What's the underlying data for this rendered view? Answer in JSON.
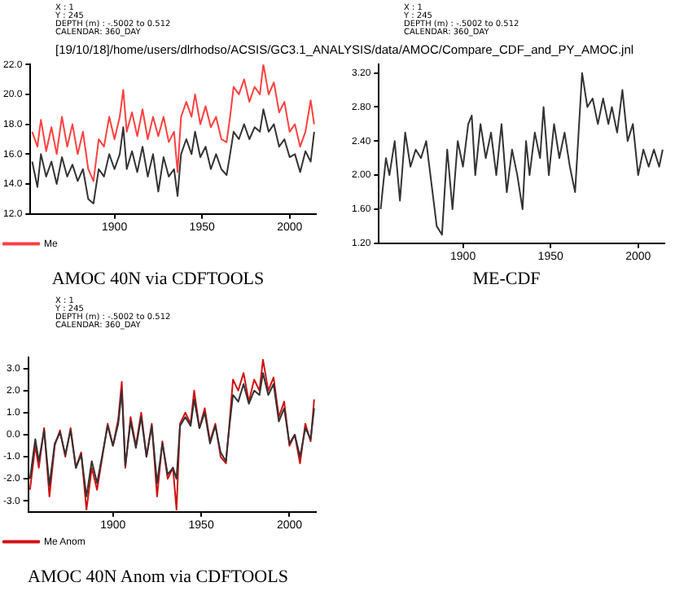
{
  "chart_data": [
    {
      "type": "line",
      "title": "AMOC 40N via CDFTOOLS",
      "subtitle": "[19/10/18]/home/users/dlrhodso/ACSIS/GC3.1_ANALYSIS/data/AMOC/Compare_CDF_and_PY_AMOC.jnl",
      "annotations": [
        "X : 1",
        "Y : 245",
        "DEPTH (m) : -.5002 to 0.512",
        "CALENDAR: 360_DAY"
      ],
      "x": [
        1853,
        1856,
        1858,
        1861,
        1864,
        1867,
        1870,
        1873,
        1876,
        1879,
        1882,
        1885,
        1888,
        1891,
        1894,
        1897,
        1900,
        1903,
        1905,
        1907,
        1910,
        1913,
        1916,
        1919,
        1922,
        1925,
        1928,
        1931,
        1934,
        1936,
        1938,
        1941,
        1944,
        1946,
        1949,
        1952,
        1955,
        1958,
        1961,
        1964,
        1966,
        1968,
        1971,
        1974,
        1977,
        1980,
        1983,
        1985,
        1988,
        1991,
        1994,
        1997,
        2000,
        2003,
        2006,
        2009,
        2012,
        2014
      ],
      "series": [
        {
          "color": "#333333",
          "values": [
            15.5,
            13.8,
            16.0,
            14.5,
            15.5,
            14.0,
            15.8,
            14.5,
            15.3,
            14.2,
            15.0,
            13.0,
            12.7,
            15.0,
            14.5,
            16.0,
            15.0,
            16.0,
            17.8,
            15.0,
            16.2,
            14.8,
            16.5,
            14.5,
            16.0,
            13.5,
            15.8,
            14.5,
            15.0,
            13.2,
            16.0,
            17.0,
            16.0,
            17.5,
            15.8,
            16.5,
            15.0,
            16.0,
            15.0,
            14.6,
            16.0,
            17.5,
            17.0,
            18.0,
            17.0,
            17.8,
            17.5,
            19.0,
            17.5,
            18.0,
            16.5,
            17.0,
            15.8,
            16.0,
            14.8,
            16.2,
            15.5,
            17.5
          ]
        },
        {
          "name": "Me",
          "color": "#ff4040",
          "values": [
            17.5,
            16.5,
            18.3,
            16.2,
            17.8,
            16.0,
            18.5,
            16.5,
            18.0,
            16.0,
            17.5,
            15.0,
            14.2,
            17.0,
            16.5,
            18.5,
            17.0,
            18.5,
            20.3,
            17.5,
            18.8,
            17.2,
            19.0,
            17.0,
            18.5,
            17.2,
            18.5,
            16.8,
            17.5,
            14.8,
            18.5,
            19.5,
            18.5,
            20.0,
            18.0,
            19.2,
            17.8,
            18.5,
            17.0,
            16.8,
            18.5,
            20.5,
            20.0,
            21.0,
            19.5,
            20.5,
            20.0,
            22.0,
            20.0,
            20.8,
            18.8,
            19.5,
            17.5,
            18.0,
            16.5,
            17.5,
            19.6,
            18.0
          ]
        }
      ],
      "xlim": [
        1852,
        2015
      ],
      "xticks": [
        1900,
        1950,
        2000
      ],
      "ylim": [
        12,
        22
      ],
      "yticks": [
        {
          "value": 12,
          "label": "12.0"
        },
        {
          "value": 14,
          "label": "14.0"
        },
        {
          "value": 16,
          "label": "16.0"
        },
        {
          "value": 18,
          "label": "18.0"
        },
        {
          "value": 20,
          "label": "20.0"
        },
        {
          "value": 22,
          "label": "22.0"
        }
      ],
      "legend": "bottom left"
    },
    {
      "type": "line",
      "title": "ME-CDF",
      "annotations": [
        "X : 1",
        "Y : 245",
        "DEPTH (m) : -.5002 to 0.512",
        "CALENDAR: 360_DAY"
      ],
      "x": [
        1853,
        1856,
        1858,
        1861,
        1864,
        1867,
        1870,
        1873,
        1876,
        1879,
        1882,
        1885,
        1888,
        1891,
        1894,
        1897,
        1900,
        1903,
        1905,
        1907,
        1910,
        1913,
        1916,
        1919,
        1922,
        1925,
        1928,
        1931,
        1934,
        1936,
        1938,
        1941,
        1944,
        1946,
        1949,
        1952,
        1955,
        1958,
        1961,
        1964,
        1966,
        1968,
        1971,
        1974,
        1977,
        1980,
        1983,
        1985,
        1988,
        1991,
        1994,
        1997,
        2000,
        2003,
        2006,
        2009,
        2012,
        2014
      ],
      "series": [
        {
          "color": "#333333",
          "values": [
            1.6,
            2.2,
            2.0,
            2.4,
            1.7,
            2.5,
            2.1,
            2.3,
            2.2,
            2.4,
            1.9,
            1.4,
            1.3,
            2.3,
            1.6,
            2.4,
            2.1,
            2.6,
            2.7,
            2.0,
            2.6,
            2.2,
            2.5,
            2.0,
            2.6,
            1.8,
            2.3,
            2.0,
            1.6,
            2.4,
            2.0,
            2.5,
            2.2,
            2.8,
            2.0,
            2.6,
            2.2,
            2.5,
            2.1,
            1.8,
            2.5,
            3.2,
            2.8,
            2.9,
            2.6,
            2.9,
            2.6,
            2.8,
            2.5,
            3.0,
            2.4,
            2.6,
            2.0,
            2.3,
            2.1,
            2.3,
            2.1,
            2.3
          ]
        }
      ],
      "xlim": [
        1852,
        2015
      ],
      "xticks": [
        1900,
        1950,
        2000
      ],
      "ylim": [
        1.2,
        3.3
      ],
      "yticks": [
        {
          "value": 1.2,
          "label": "1.20"
        },
        {
          "value": 1.6,
          "label": "1.60"
        },
        {
          "value": 2.0,
          "label": "2.00"
        },
        {
          "value": 2.4,
          "label": "2.40"
        },
        {
          "value": 2.8,
          "label": "2.80"
        },
        {
          "value": 3.2,
          "label": "3.20"
        }
      ]
    },
    {
      "type": "line",
      "title": "AMOC 40N Anom via CDFTOOLS",
      "annotations": [
        "X : 1",
        "Y : 245",
        "DEPTH (m) : -.5002 to 0.512",
        "CALENDAR: 360_DAY"
      ],
      "x": [
        1853,
        1856,
        1858,
        1861,
        1864,
        1867,
        1870,
        1873,
        1876,
        1879,
        1882,
        1885,
        1888,
        1891,
        1894,
        1897,
        1900,
        1903,
        1905,
        1907,
        1910,
        1913,
        1916,
        1919,
        1922,
        1925,
        1928,
        1931,
        1934,
        1936,
        1938,
        1941,
        1944,
        1946,
        1949,
        1952,
        1955,
        1958,
        1961,
        1964,
        1966,
        1968,
        1971,
        1974,
        1977,
        1980,
        1983,
        1985,
        1988,
        1991,
        1994,
        1997,
        2000,
        2003,
        2006,
        2009,
        2012,
        2014
      ],
      "series": [
        {
          "color": "#333333",
          "values": [
            -2.0,
            -0.2,
            -1.2,
            0.2,
            -2.3,
            -0.4,
            0.1,
            -0.9,
            0.2,
            -1.5,
            -0.9,
            -2.8,
            -1.2,
            -2.2,
            -0.9,
            0.4,
            -0.5,
            0.5,
            2.0,
            -1.4,
            0.6,
            -0.6,
            0.8,
            -1.0,
            0.4,
            -2.2,
            -0.4,
            -1.8,
            -1.5,
            -2.0,
            0.4,
            0.8,
            0.4,
            1.6,
            0.3,
            1.0,
            -0.4,
            0.4,
            -0.8,
            -1.2,
            0.4,
            1.8,
            1.5,
            2.3,
            1.4,
            2.0,
            1.8,
            2.8,
            1.8,
            2.3,
            0.6,
            1.2,
            -0.4,
            0.0,
            -1.0,
            0.3,
            -0.2,
            1.2
          ]
        },
        {
          "name": "Me Anom",
          "color": "#d01010",
          "values": [
            -2.5,
            -0.5,
            -1.5,
            0.3,
            -2.8,
            -0.5,
            0.2,
            -1.0,
            0.3,
            -1.5,
            -0.8,
            -3.4,
            -1.5,
            -2.5,
            -1.0,
            0.5,
            -0.5,
            0.7,
            2.4,
            -1.5,
            0.8,
            -0.5,
            1.0,
            -1.0,
            0.5,
            -2.8,
            -0.3,
            -2.0,
            -1.5,
            -3.4,
            0.5,
            1.0,
            0.5,
            2.0,
            0.3,
            1.2,
            -0.3,
            0.5,
            -1.0,
            -1.3,
            0.5,
            2.5,
            2.0,
            2.8,
            1.5,
            2.5,
            2.0,
            3.4,
            2.0,
            2.6,
            0.8,
            1.5,
            -0.5,
            0.0,
            -1.3,
            0.5,
            -0.3,
            1.6
          ]
        }
      ],
      "xlim": [
        1852,
        2015
      ],
      "xticks": [
        1900,
        1950,
        2000
      ],
      "ylim": [
        -3.5,
        3.5
      ],
      "yticks": [
        {
          "value": -3,
          "label": "-3.0"
        },
        {
          "value": -2,
          "label": "-2.0"
        },
        {
          "value": -1,
          "label": "-1.0"
        },
        {
          "value": 0,
          "label": "0.0"
        },
        {
          "value": 1,
          "label": "1.0"
        },
        {
          "value": 2,
          "label": "2.0"
        },
        {
          "value": 3,
          "label": "3.0"
        }
      ],
      "legend": "bottom left"
    }
  ]
}
